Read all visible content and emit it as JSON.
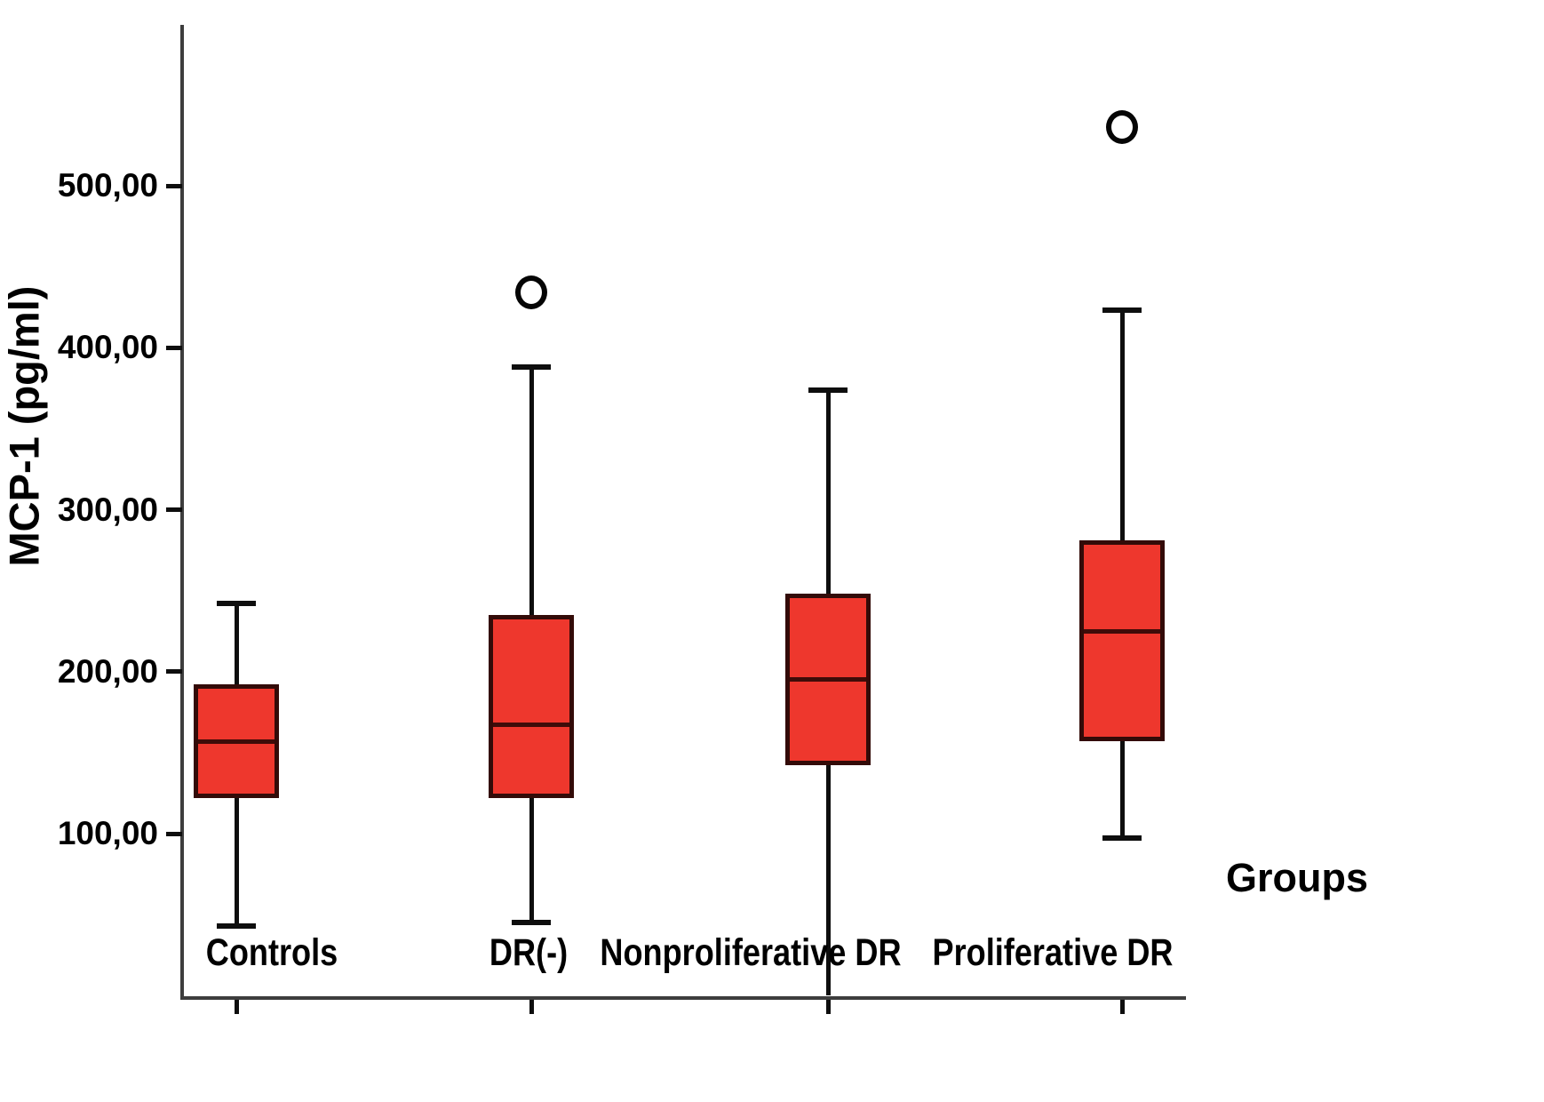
{
  "figure": {
    "y_axis_title": "MCP-1 (pg/ml)",
    "x_axis_title": "Groups"
  },
  "chart_data": {
    "type": "boxplot",
    "title": "",
    "ylabel": "MCP-1 (pg/ml)",
    "xlabel": "Groups",
    "ylim": [
      0,
      600
    ],
    "grid": false,
    "legend": "none",
    "y_tick_format": "comma-decimal",
    "y_ticks": [
      {
        "label": "500,00",
        "value": 500
      },
      {
        "label": "400,00",
        "value": 400
      },
      {
        "label": "300,00",
        "value": 300
      },
      {
        "label": "200,00",
        "value": 200
      },
      {
        "label": "100,00",
        "value": 100
      }
    ],
    "categories": [
      "Controls",
      "DR(-)",
      "Nonproliferative DR",
      "Proliferative DR"
    ],
    "groups": [
      {
        "label": "Controls",
        "whisker_low": 43,
        "q1": 122,
        "median": 157,
        "q3": 192,
        "whisker_high": 242,
        "lower_whisker_capped": true,
        "outliers": []
      },
      {
        "label": "DR(-)",
        "whisker_low": 45,
        "q1": 122,
        "median": 167,
        "q3": 235,
        "whisker_high": 388,
        "lower_whisker_capped": true,
        "outliers": [
          434
        ]
      },
      {
        "label": "Nonproliferative DR",
        "whisker_low": 0,
        "q1": 142,
        "median": 195,
        "q3": 248,
        "whisker_high": 374,
        "lower_whisker_capped": false,
        "outliers": []
      },
      {
        "label": "Proliferative DR",
        "whisker_low": 97,
        "q1": 157,
        "median": 225,
        "q3": 281,
        "whisker_high": 423,
        "lower_whisker_capped": true,
        "outliers": [
          536
        ]
      }
    ],
    "outlier_marker": "O",
    "colors": {
      "box_fill": "#ee372d",
      "box_border": "#330b08",
      "median": "#3f0c09",
      "whisker": "#0e0e0e",
      "axis": "#3d3d3d",
      "text": "#000000",
      "background": "#ffffff"
    }
  }
}
